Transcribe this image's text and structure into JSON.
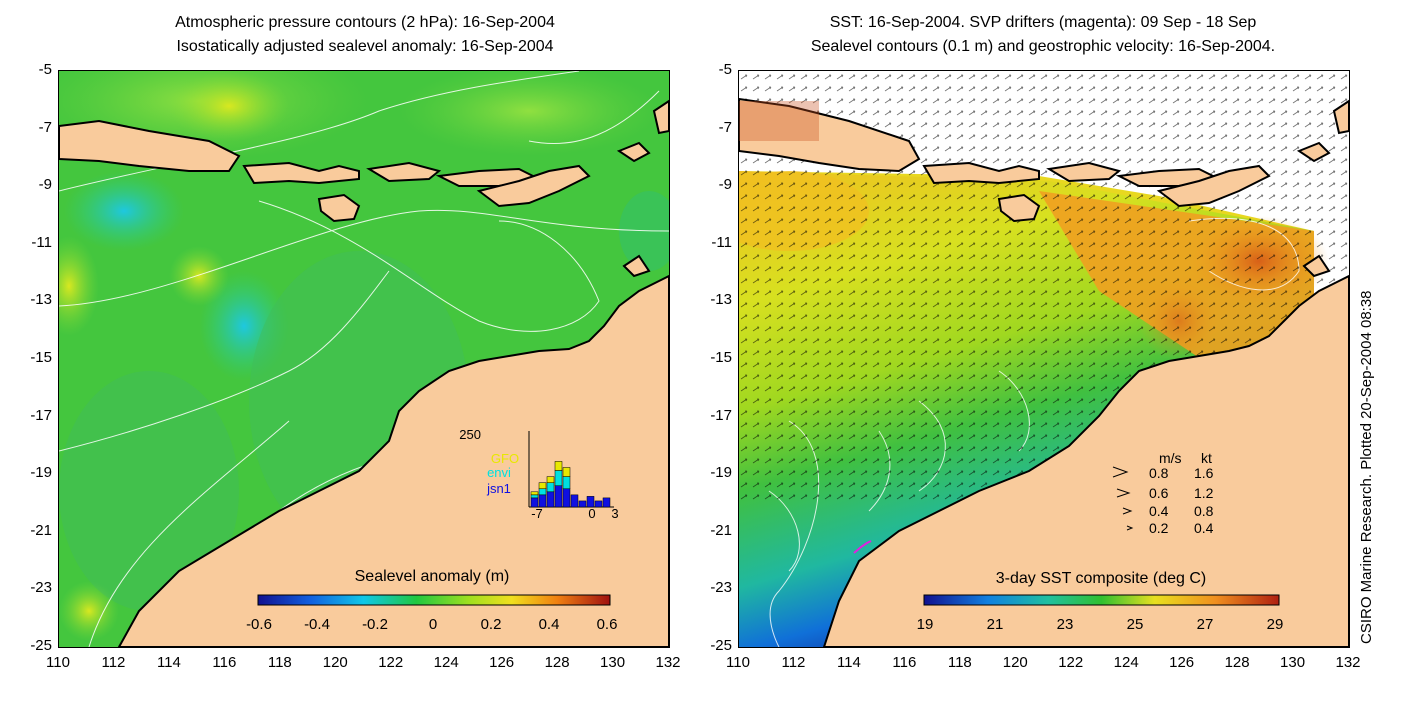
{
  "left_panel": {
    "title_line1": "Atmospheric pressure contours (2 hPa): 16-Sep-2004",
    "title_line2": "Isostatically adjusted sealevel anomaly: 16-Sep-2004",
    "y_ticks": [
      "-5",
      "-7",
      "-9",
      "-11",
      "-13",
      "-15",
      "-17",
      "-19",
      "-21",
      "-23",
      "-25"
    ],
    "x_ticks": [
      "110",
      "112",
      "114",
      "116",
      "118",
      "120",
      "122",
      "124",
      "126",
      "128",
      "130",
      "132"
    ],
    "colorbar": {
      "label": "Sealevel anomaly (m)",
      "ticks": [
        "-0.6",
        "-0.4",
        "-0.2",
        "0",
        "0.2",
        "0.4",
        "0.6"
      ]
    },
    "inset": {
      "ymax_label": "250",
      "x_labels": [
        "-7",
        "0",
        "3"
      ],
      "legend": [
        {
          "label": "GFO",
          "color": "#e8e800"
        },
        {
          "label": "envi",
          "color": "#00e0e0"
        },
        {
          "label": "jsn1",
          "color": "#1010e0"
        }
      ],
      "bars": [
        {
          "day": -7,
          "jsn1": 30,
          "envi": 10,
          "gfo": 10
        },
        {
          "day": -6,
          "jsn1": 40,
          "envi": 20,
          "gfo": 20
        },
        {
          "day": -5,
          "jsn1": 50,
          "envi": 30,
          "gfo": 20
        },
        {
          "day": -4,
          "jsn1": 70,
          "envi": 50,
          "gfo": 30
        },
        {
          "day": -3,
          "jsn1": 60,
          "envi": 40,
          "gfo": 30
        },
        {
          "day": -2,
          "jsn1": 40,
          "envi": 0,
          "gfo": 0
        },
        {
          "day": -1,
          "jsn1": 20,
          "envi": 0,
          "gfo": 0
        },
        {
          "day": 0,
          "jsn1": 35,
          "envi": 0,
          "gfo": 0
        },
        {
          "day": 1,
          "jsn1": 20,
          "envi": 0,
          "gfo": 0
        },
        {
          "day": 2,
          "jsn1": 30,
          "envi": 0,
          "gfo": 0
        }
      ]
    }
  },
  "right_panel": {
    "title_line1": "SST: 16-Sep-2004. SVP drifters (magenta): 09 Sep - 18 Sep",
    "title_line2": "Sealevel contours (0.1 m) and geostrophic velocity: 16-Sep-2004.",
    "y_ticks": [
      "-5",
      "-7",
      "-9",
      "-11",
      "-13",
      "-15",
      "-17",
      "-19",
      "-21",
      "-23",
      "-25"
    ],
    "x_ticks": [
      "110",
      "112",
      "114",
      "116",
      "118",
      "120",
      "122",
      "124",
      "126",
      "128",
      "130",
      "132"
    ],
    "colorbar": {
      "label": "3-day SST composite (deg C)",
      "ticks": [
        "19",
        "21",
        "23",
        "25",
        "27",
        "29"
      ]
    },
    "velocity_legend": {
      "header_ms": "m/s",
      "header_kt": "kt",
      "rows": [
        {
          "ms": "0.8",
          "kt": "1.6"
        },
        {
          "ms": "0.6",
          "kt": "1.2"
        },
        {
          "ms": "0.4",
          "kt": "0.8"
        },
        {
          "ms": "0.2",
          "kt": "0.4"
        }
      ]
    }
  },
  "side_note": "CSIRO Marine Research. Plotted 20-Sep-2004 08:38",
  "colors": {
    "land": "#f9cb9c",
    "ocean_green": "#3cc23c",
    "coast": "#000000"
  }
}
